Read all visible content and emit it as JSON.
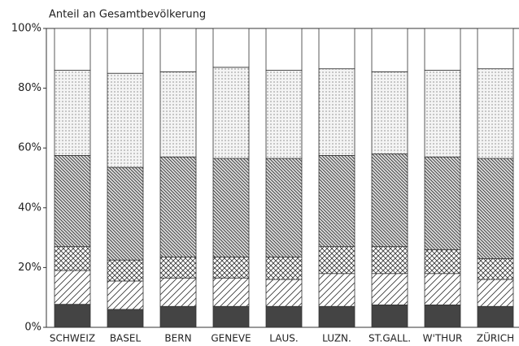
{
  "chart_data": {
    "type": "stacked_bar",
    "title": "Anteil an Gesamtbevölkerung",
    "categories": [
      "SCHWEIZ",
      "BASEL",
      "BERN",
      "GENEVE",
      "LAUS.",
      "LUZN.",
      "ST.GALL.",
      "W'THUR",
      "ZÜRICH"
    ],
    "series": [
      {
        "pattern": "solid",
        "color": "#444444",
        "values": [
          7.7,
          6,
          7,
          7,
          7,
          7,
          7.5,
          7.5,
          7
        ]
      },
      {
        "pattern": "diagonal",
        "color": "#333333",
        "values": [
          11.3,
          9.5,
          9.5,
          9.5,
          9,
          11,
          10.5,
          10.5,
          9
        ]
      },
      {
        "pattern": "crosshatch",
        "color": "#333333",
        "values": [
          8,
          7,
          7,
          7,
          7.5,
          9,
          9,
          8,
          7
        ]
      },
      {
        "pattern": "dense-diagonal",
        "color": "#333333",
        "values": [
          30.5,
          31,
          33.5,
          33,
          33,
          30.5,
          31,
          31,
          33.5
        ]
      },
      {
        "pattern": "dots",
        "color": "#555555",
        "values": [
          28.5,
          31.5,
          28.5,
          30.5,
          29.5,
          29,
          27.5,
          29,
          30
        ]
      },
      {
        "pattern": "empty",
        "color": "#ffffff",
        "values": [
          14,
          15,
          14.5,
          13,
          14,
          13.5,
          14.5,
          14,
          13.5
        ]
      }
    ],
    "ylim": [
      0,
      100
    ],
    "yticks": [
      {
        "value": 0,
        "label": "0%"
      },
      {
        "value": 20,
        "label": "20%"
      },
      {
        "value": 40,
        "label": "40%"
      },
      {
        "value": 60,
        "label": "60%"
      },
      {
        "value": 80,
        "label": "80%"
      },
      {
        "value": 100,
        "label": "100%"
      }
    ]
  }
}
